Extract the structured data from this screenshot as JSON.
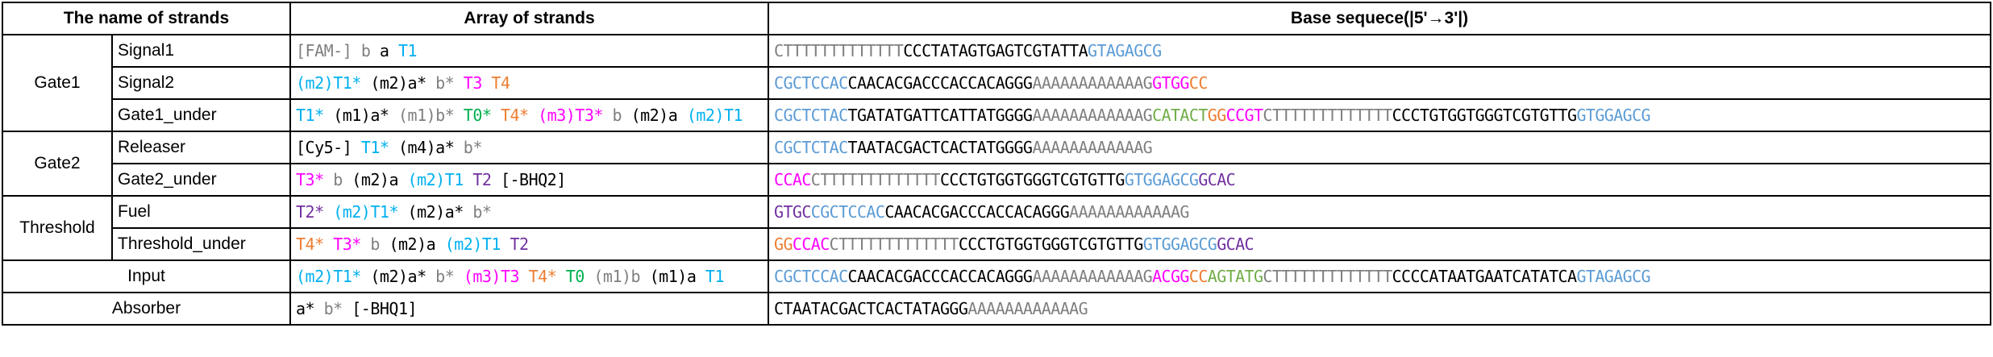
{
  "colors": {
    "k": "#000000",
    "g": "#7f7f7f",
    "c": "#00b0f0",
    "m": "#ff00ff",
    "o": "#ed7d31",
    "n": "#00b050",
    "p": "#7030a0",
    "b": "#5b9bd5",
    "l": "#70ad47",
    "r": "#ff00ff"
  },
  "headers": {
    "name": "The name of strands",
    "array": "Array of strands",
    "sequence": "Base sequece(|5'→3'|)"
  },
  "groups": {
    "gate1": "Gate1",
    "gate2": "Gate2",
    "threshold": "Threshold"
  },
  "rows": [
    {
      "name": "Signal1",
      "array": [
        [
          "[FAM-] ",
          "g"
        ],
        [
          "b ",
          "g"
        ],
        [
          "a ",
          "k"
        ],
        [
          "T1",
          "c"
        ]
      ],
      "seq": [
        [
          "CTTTTTTTTTTTTT",
          "g"
        ],
        [
          "CCCTATAGTGAGTCGTATTA",
          "k"
        ],
        [
          "GTAGAGCG",
          "b"
        ]
      ]
    },
    {
      "name": "Signal2",
      "array": [
        [
          "(m2)",
          "c"
        ],
        [
          "T1* ",
          "c"
        ],
        [
          "(m2)",
          "k"
        ],
        [
          "a* ",
          "k"
        ],
        [
          "b* ",
          "g"
        ],
        [
          "T3 ",
          "m"
        ],
        [
          "T4",
          "o"
        ]
      ],
      "seq": [
        [
          "CGCTCCAC",
          "b"
        ],
        [
          "CAACACGACCCACCACAGGG",
          "k"
        ],
        [
          "AAAAAAAAAAAAG",
          "g"
        ],
        [
          "GTGG",
          "m"
        ],
        [
          "CC",
          "o"
        ]
      ]
    },
    {
      "name": "Gate1_under",
      "array": [
        [
          "T1* ",
          "c"
        ],
        [
          "(m1)",
          "k"
        ],
        [
          "a* ",
          "k"
        ],
        [
          "(m1)",
          "g"
        ],
        [
          "b* ",
          "g"
        ],
        [
          "T0* ",
          "n"
        ],
        [
          "T4* ",
          "o"
        ],
        [
          "(m3)",
          "m"
        ],
        [
          "T3* ",
          "m"
        ],
        [
          "b ",
          "g"
        ],
        [
          "(m2)",
          "k"
        ],
        [
          "a ",
          "k"
        ],
        [
          "(m2)",
          "c"
        ],
        [
          "T1",
          "c"
        ]
      ],
      "seq": [
        [
          "CGCTCTAC",
          "b"
        ],
        [
          "TGATATGATTCATTATGGGG",
          "k"
        ],
        [
          "AAAAAAAAAAAAG",
          "g"
        ],
        [
          "CATACT",
          "l"
        ],
        [
          "GG",
          "o"
        ],
        [
          "CCGT",
          "m"
        ],
        [
          "CTTTTTTTTTTTTT",
          "g"
        ],
        [
          "CCCTGTGGTGGGTCGTGTTG",
          "k"
        ],
        [
          "GTGGAGCG",
          "b"
        ]
      ]
    },
    {
      "name": "Releaser",
      "array": [
        [
          "[Cy5-] ",
          "k"
        ],
        [
          "T1* ",
          "c"
        ],
        [
          "(m4)",
          "k"
        ],
        [
          "a* ",
          "k"
        ],
        [
          "b*",
          "g"
        ]
      ],
      "seq": [
        [
          "CGCTCTAC",
          "b"
        ],
        [
          "TAATACGACTCACTATGGGG",
          "k"
        ],
        [
          "AAAAAAAAAAAAG",
          "g"
        ]
      ]
    },
    {
      "name": "Gate2_under",
      "array": [
        [
          "T3* ",
          "m"
        ],
        [
          "b ",
          "g"
        ],
        [
          "(m2)",
          "k"
        ],
        [
          "a ",
          "k"
        ],
        [
          "(m2)",
          "c"
        ],
        [
          "T1 ",
          "c"
        ],
        [
          "T2 ",
          "p"
        ],
        [
          "[-BHQ2]",
          "k"
        ]
      ],
      "seq": [
        [
          "CCAC",
          "m"
        ],
        [
          "CTTTTTTTTTTTTT",
          "g"
        ],
        [
          "CCCTGTGGTGGGTCGTGTTG",
          "k"
        ],
        [
          "GTGGAGCG",
          "b"
        ],
        [
          "GCAC",
          "p"
        ]
      ]
    },
    {
      "name": "Fuel",
      "array": [
        [
          "T2* ",
          "p"
        ],
        [
          "(m2)",
          "c"
        ],
        [
          "T1* ",
          "c"
        ],
        [
          "(m2)",
          "k"
        ],
        [
          "a* ",
          "k"
        ],
        [
          "b*",
          "g"
        ]
      ],
      "seq": [
        [
          "GTGC",
          "p"
        ],
        [
          "CGCTCCAC",
          "b"
        ],
        [
          "CAACACGACCCACCACAGGG",
          "k"
        ],
        [
          "AAAAAAAAAAAAG",
          "g"
        ]
      ]
    },
    {
      "name": "Threshold_under",
      "array": [
        [
          "T4* ",
          "o"
        ],
        [
          "T3* ",
          "m"
        ],
        [
          "b ",
          "g"
        ],
        [
          "(m2)",
          "k"
        ],
        [
          "a ",
          "k"
        ],
        [
          "(m2)",
          "c"
        ],
        [
          "T1 ",
          "c"
        ],
        [
          "T2",
          "p"
        ]
      ],
      "seq": [
        [
          "GG",
          "o"
        ],
        [
          "CCAC",
          "m"
        ],
        [
          "CTTTTTTTTTTTTT",
          "g"
        ],
        [
          "CCCTGTGGTGGGTCGTGTTG",
          "k"
        ],
        [
          "GTGGAGCG",
          "b"
        ],
        [
          "GCAC",
          "p"
        ]
      ]
    },
    {
      "name": "Input",
      "array": [
        [
          "(m2)",
          "c"
        ],
        [
          "T1* ",
          "c"
        ],
        [
          "(m2)",
          "k"
        ],
        [
          "a* ",
          "k"
        ],
        [
          "b* ",
          "g"
        ],
        [
          "(m3)",
          "m"
        ],
        [
          "T3 ",
          "m"
        ],
        [
          "T4* ",
          "o"
        ],
        [
          "T0 ",
          "n"
        ],
        [
          "(m1)",
          "g"
        ],
        [
          "b ",
          "g"
        ],
        [
          "(m1)",
          "k"
        ],
        [
          "a ",
          "k"
        ],
        [
          "T1",
          "c"
        ]
      ],
      "seq": [
        [
          "CGCTCCAC",
          "b"
        ],
        [
          "CAACACGACCCACCACAGGG",
          "k"
        ],
        [
          "AAAAAAAAAAAAG",
          "g"
        ],
        [
          "ACGG",
          "m"
        ],
        [
          "CC",
          "o"
        ],
        [
          "AGTATG",
          "l"
        ],
        [
          "CTTTTTTTTTTTTT",
          "g"
        ],
        [
          "CCCCATAATGAATCATATCA",
          "k"
        ],
        [
          "GTAGAGCG",
          "b"
        ]
      ]
    },
    {
      "name": "Absorber",
      "array": [
        [
          "a* ",
          "k"
        ],
        [
          "b* ",
          "g"
        ],
        [
          "[-BHQ1]",
          "k"
        ]
      ],
      "seq": [
        [
          "CTAATACGACTCACTATAGGG",
          "k"
        ],
        [
          "AAAAAAAAAAAAG",
          "g"
        ]
      ]
    }
  ]
}
